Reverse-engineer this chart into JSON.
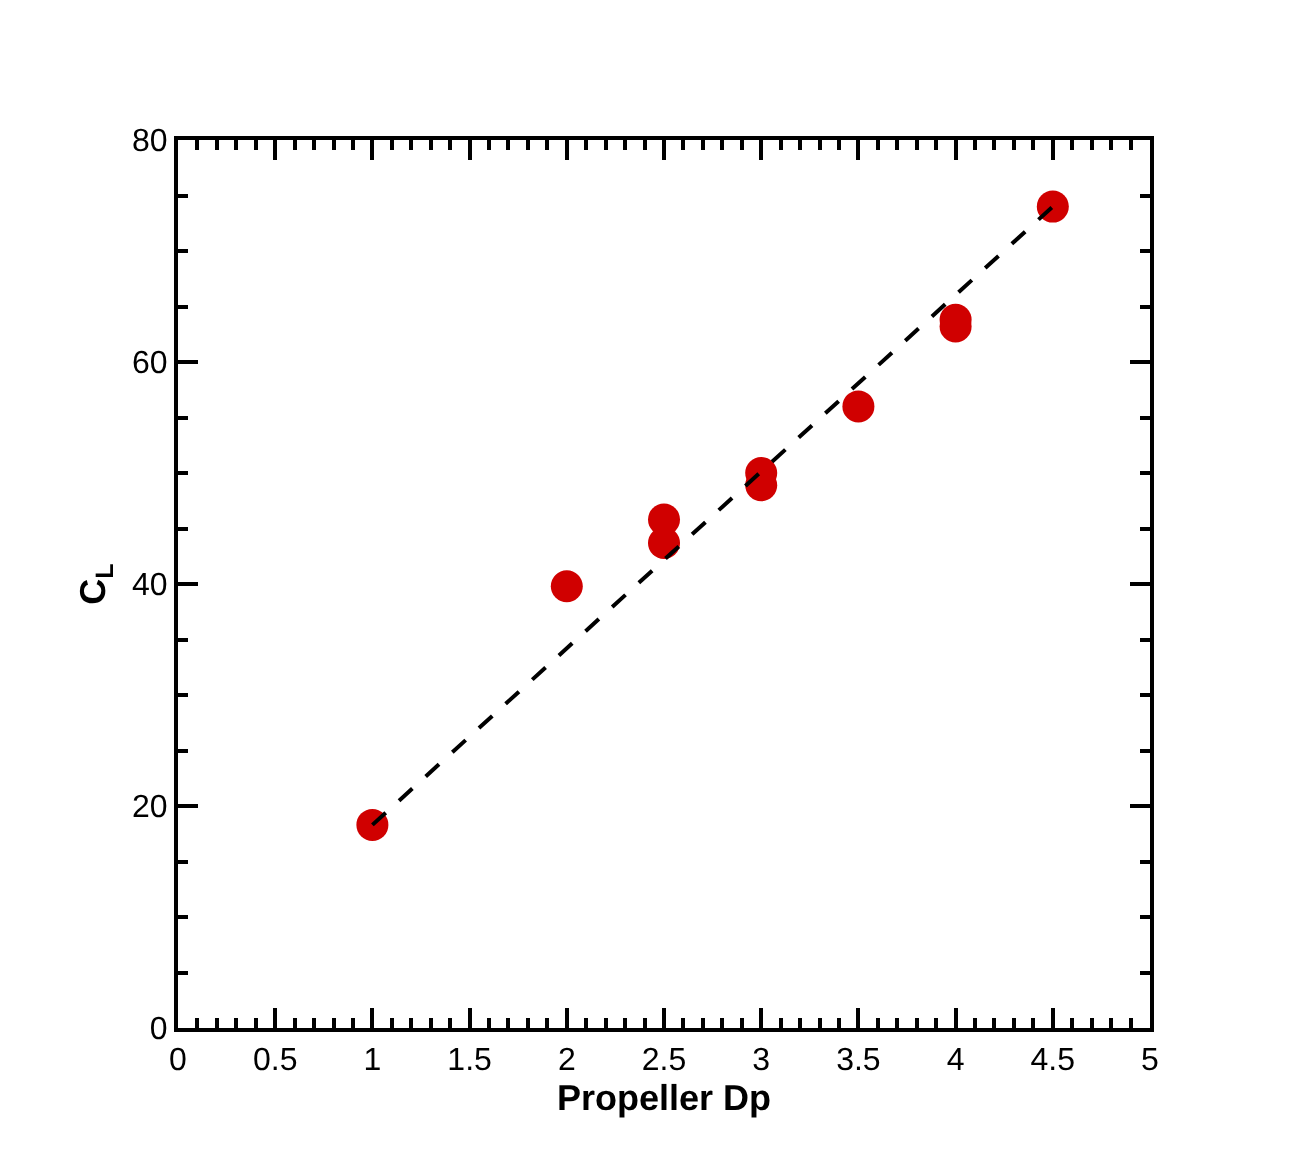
{
  "chart_data": {
    "type": "scatter",
    "xlabel": "Propeller Dp",
    "ylabel": "C$_{L}$",
    "xlim": [
      0,
      5
    ],
    "xticks": [
      0,
      0.5,
      1,
      1.5,
      2,
      2.5,
      3,
      3.5,
      4,
      4.5,
      5
    ],
    "ylim": [
      0,
      80
    ],
    "yticks": [
      0,
      20,
      40,
      60,
      80
    ],
    "series": [
      {
        "color": "#d00000",
        "marker": "circle",
        "x": [
          1,
          2,
          2.5,
          2.5,
          3,
          3,
          3.5,
          4,
          4,
          4.5
        ],
        "values": [
          18.3,
          39.8,
          45.8,
          43.7,
          50.0,
          48.9,
          56.0,
          63.8,
          63.2,
          74.0
        ]
      },
      {
        "type": "line",
        "color": "#000000",
        "line_style": "dashed",
        "marker": "none",
        "x": [
          1,
          4.5
        ],
        "values": [
          18.3,
          74.0
        ]
      }
    ]
  }
}
